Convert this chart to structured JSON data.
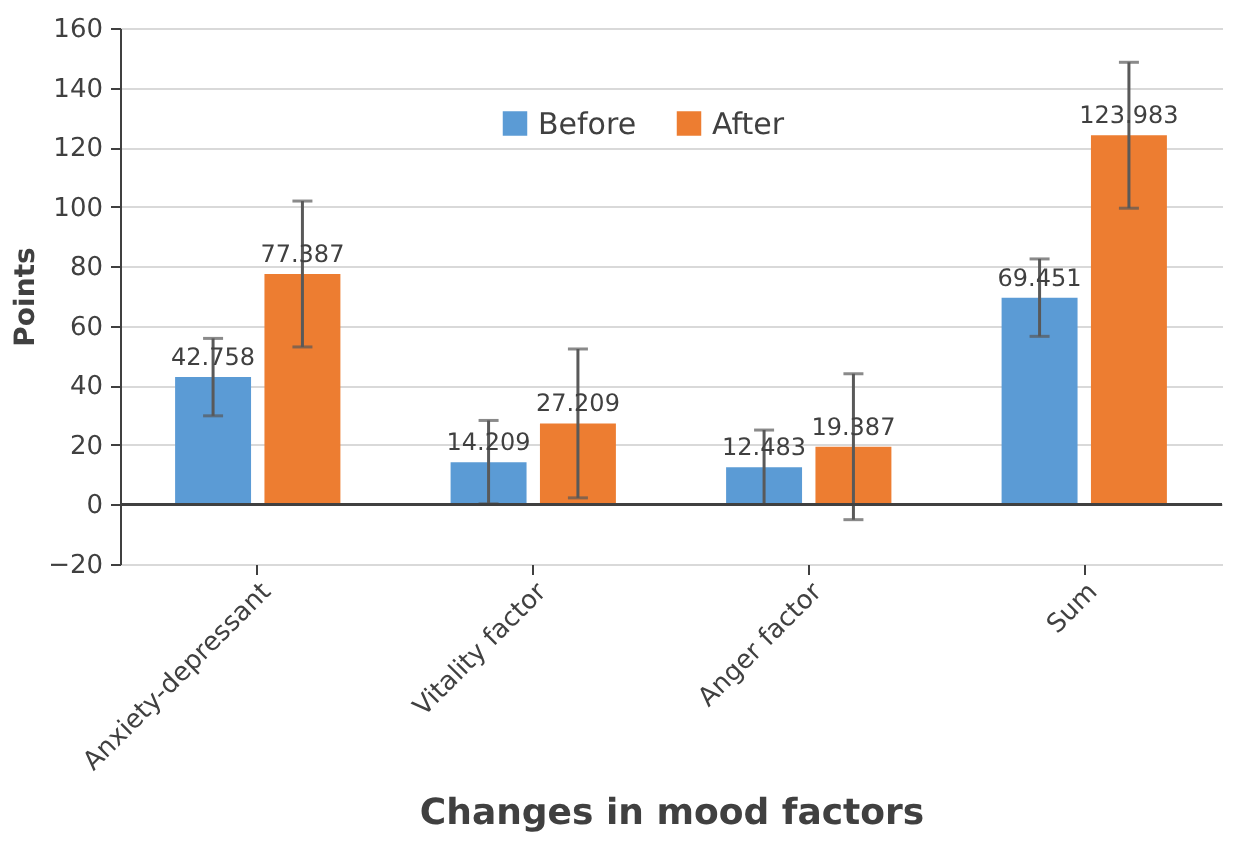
{
  "chart_data": {
    "type": "bar",
    "xlabel": "Changes in mood factors",
    "ylabel": "Points",
    "categories": [
      "Anxiety-depressant",
      "Vitality factor",
      "Anger factor",
      "Sum"
    ],
    "series": [
      {
        "name": "Before",
        "color": "#5b9bd5",
        "values": [
          42.758,
          14.209,
          12.483,
          69.451
        ],
        "errors": [
          13,
          14,
          12.5,
          13
        ]
      },
      {
        "name": "After",
        "color": "#ed7d31",
        "values": [
          77.387,
          27.209,
          19.387,
          123.983
        ],
        "errors": [
          24.5,
          25,
          24.5,
          24.5
        ]
      }
    ],
    "ylim": [
      -20,
      160
    ],
    "yticks": [
      -20,
      0,
      20,
      40,
      60,
      80,
      100,
      120,
      140,
      160
    ],
    "grid": "y",
    "legend": "top",
    "data_labels": true
  }
}
